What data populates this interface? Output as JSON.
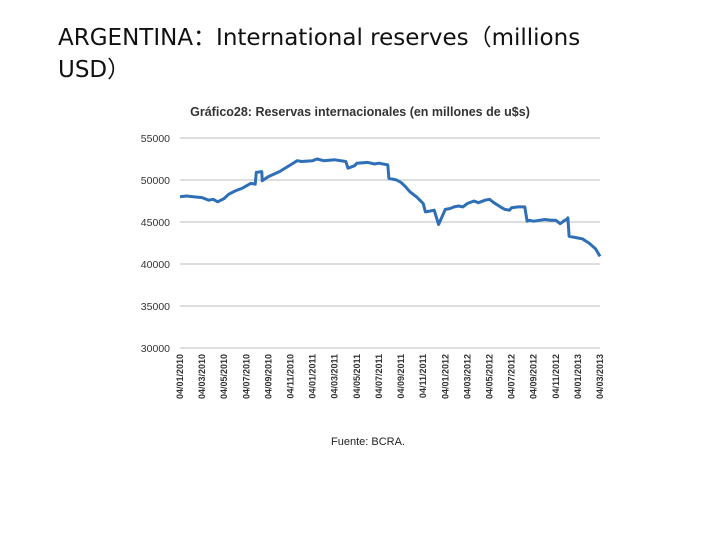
{
  "slide": {
    "title": "ARGENTINA：International reserves（millions USD）"
  },
  "colors": {
    "line": "#2e6fb7",
    "grid": "#bdbdbd",
    "text": "#333333"
  },
  "chart_data": {
    "type": "line",
    "title": "Gráfico28: Reservas internacionales (en millones de u$s)",
    "source": "Fuente: BCRA.",
    "ylim": [
      30000,
      55000
    ],
    "yticks": [
      "55000",
      "50000",
      "45000",
      "40000",
      "35000",
      "30000"
    ],
    "xticks": [
      "04/01/2010",
      "04/03/2010",
      "04/05/2010",
      "04/07/2010",
      "04/09/2010",
      "04/11/2010",
      "04/01/2011",
      "04/03/2011",
      "04/05/2011",
      "04/07/2011",
      "04/09/2011",
      "04/11/2011",
      "04/01/2012",
      "04/03/2012",
      "04/05/2012",
      "04/07/2012",
      "04/09/2012",
      "04/11/2012",
      "04/01/2013",
      "04/03/2013"
    ],
    "grid": true,
    "legend": "none",
    "x_domain": [
      0,
      19
    ],
    "series": [
      {
        "x": [
          0,
          0.3,
          0.6,
          1.0,
          1.3,
          1.5,
          1.7,
          2.0,
          2.2,
          2.5,
          2.8,
          3.0,
          3.2,
          3.4,
          3.45,
          3.7,
          3.72,
          4.0,
          4.5,
          5.0,
          5.3,
          5.5,
          6.0,
          6.2,
          6.5,
          7.0,
          7.5,
          7.6,
          7.9,
          8.0,
          8.5,
          8.8,
          9.0,
          9.4,
          9.45,
          9.8,
          10.0,
          10.2,
          10.4,
          10.7,
          11.0,
          11.1,
          11.3,
          11.5,
          11.7,
          12.0,
          12.2,
          12.4,
          12.6,
          12.8,
          13.0,
          13.3,
          13.5,
          13.8,
          14.0,
          14.2,
          14.5,
          14.7,
          14.9,
          15.0,
          15.3,
          15.6,
          15.7,
          15.8,
          16.0,
          16.5,
          16.8,
          17.0,
          17.2,
          17.4,
          17.5,
          17.55,
          17.6,
          18.0,
          18.2,
          18.5,
          18.8,
          19.0
        ],
        "y": [
          48000,
          48100,
          48000,
          47900,
          47600,
          47700,
          47400,
          47800,
          48300,
          48700,
          49000,
          49300,
          49600,
          49500,
          50900,
          51000,
          49900,
          50400,
          51000,
          51800,
          52300,
          52200,
          52300,
          52500,
          52300,
          52400,
          52200,
          51400,
          51700,
          52000,
          52100,
          51900,
          52000,
          51800,
          50200,
          50000,
          49700,
          49200,
          48600,
          48000,
          47200,
          46200,
          46300,
          46400,
          44700,
          46500,
          46600,
          46800,
          46900,
          46800,
          47200,
          47500,
          47300,
          47600,
          47700,
          47300,
          46800,
          46500,
          46400,
          46700,
          46800,
          46800,
          45100,
          45200,
          45100,
          45300,
          45200,
          45200,
          44800,
          45200,
          45300,
          45500,
          43300,
          43100,
          43000,
          42500,
          41800,
          40900
        ]
      }
    ]
  }
}
